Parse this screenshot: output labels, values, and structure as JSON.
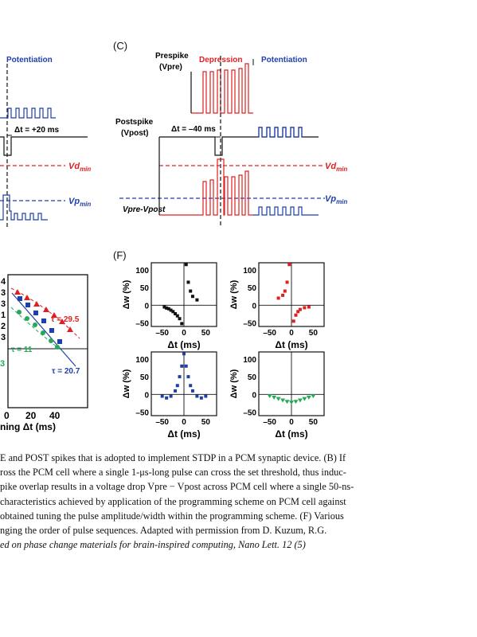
{
  "panels": {
    "left_top": {
      "potentiation_label": "Potentiation",
      "dt_label": "Δt = +20 ms",
      "vd_label": "Vd",
      "vd_sub": "min",
      "vp_label": "Vp",
      "vp_sub": "min"
    },
    "C": {
      "label": "(C)",
      "prespike_label": "Prespike",
      "prespike_var": "(Vpre)",
      "depression_label": "Depression",
      "potentiation_label": "Potentiation",
      "postspike_label": "Postspike",
      "postspike_var": "(Vpost)",
      "dt_label": "Δt = –40 ms",
      "vd_label": "Vd",
      "vd_sub": "min",
      "vp_label": "Vp",
      "vp_sub": "min",
      "vdiff_label": "Vpre-Vpost"
    },
    "left_bottom": {
      "tau_red": "τ = 29.5",
      "tau_green": "τ = 11",
      "tau_blue": "τ = 20.7",
      "xticks": [
        "0",
        "20",
        "40"
      ],
      "xlabel": "ning Δt (ms)",
      "partial_yticks": [
        "4",
        "3",
        "3",
        "1",
        "2",
        "3"
      ],
      "green_partial": "3"
    },
    "F": {
      "label": "(F)",
      "ylabel": "Δw (%)",
      "xlabel": "Δt (ms)",
      "yticks": [
        "100",
        "50",
        "0",
        "–50"
      ],
      "xticks": [
        "–50",
        "0",
        "50"
      ]
    }
  },
  "chart_data": [
    {
      "type": "scatter",
      "title": "",
      "panel": "F-top-left",
      "xlabel": "Δt (ms)",
      "ylabel": "Δw (%)",
      "xlim": [
        -75,
        75
      ],
      "ylim": [
        -60,
        120
      ],
      "color": "#111111",
      "x": [
        -45,
        -40,
        -35,
        -30,
        -25,
        -20,
        -15,
        -10,
        -5,
        5,
        10,
        15,
        20,
        30
      ],
      "y": [
        -5,
        -8,
        -10,
        -14,
        -18,
        -24,
        -30,
        -38,
        -52,
        115,
        65,
        40,
        25,
        15
      ]
    },
    {
      "type": "scatter",
      "title": "",
      "panel": "F-top-right",
      "xlabel": "Δt (ms)",
      "ylabel": "Δw (%)",
      "xlim": [
        -75,
        75
      ],
      "ylim": [
        -60,
        120
      ],
      "color": "#e02020",
      "x": [
        -30,
        -20,
        -15,
        -10,
        -5,
        5,
        10,
        15,
        20,
        30,
        40
      ],
      "y": [
        20,
        28,
        40,
        65,
        115,
        -45,
        -28,
        -18,
        -12,
        -7,
        -5
      ]
    },
    {
      "type": "scatter",
      "title": "",
      "panel": "F-bottom-left",
      "xlabel": "Δt (ms)",
      "ylabel": "Δw (%)",
      "xlim": [
        -75,
        75
      ],
      "ylim": [
        -60,
        120
      ],
      "color": "#1f3faa",
      "x": [
        -50,
        -40,
        -30,
        -20,
        -15,
        -10,
        -5,
        0,
        5,
        10,
        15,
        20,
        30,
        40,
        50
      ],
      "y": [
        -5,
        -10,
        -5,
        10,
        25,
        50,
        80,
        115,
        80,
        50,
        25,
        10,
        -5,
        -10,
        -5
      ]
    },
    {
      "type": "scatter",
      "title": "",
      "panel": "F-bottom-right",
      "xlabel": "Δt (ms)",
      "ylabel": "Δw (%)",
      "xlim": [
        -75,
        75
      ],
      "ylim": [
        -60,
        120
      ],
      "color": "#22aa55",
      "x": [
        -50,
        -40,
        -30,
        -20,
        -10,
        0,
        10,
        20,
        30,
        40,
        50
      ],
      "y": [
        -4,
        -8,
        -12,
        -16,
        -20,
        -22,
        -20,
        -16,
        -12,
        -8,
        -4
      ]
    }
  ],
  "caption": {
    "lines": [
      {
        "text": "E and POST spikes that is adopted to implement STDP in a PCM synaptic device. (B) If",
        "italic": false
      },
      {
        "text": "ross the PCM cell where a single 1-μs-long pulse can cross the set threshold, thus induc-",
        "italic": false
      },
      {
        "text": "pike overlap results in a voltage drop Vpre − Vpost across PCM cell where a single 50-ns-",
        "italic": false
      },
      {
        "text": "characteristics achieved by application of the programming scheme on PCM cell against",
        "italic": false
      },
      {
        "text": "obtained tuning the pulse amplitude/width within the programming scheme. (F) Various",
        "italic": false
      },
      {
        "text": "nging the order of pulse sequences. Adapted with permission from D. Kuzum, R.G.",
        "italic": false
      },
      {
        "text": "ed on phase change materials for brain-inspired computing, Nano Lett. 12 (5)",
        "italic": true
      }
    ]
  }
}
